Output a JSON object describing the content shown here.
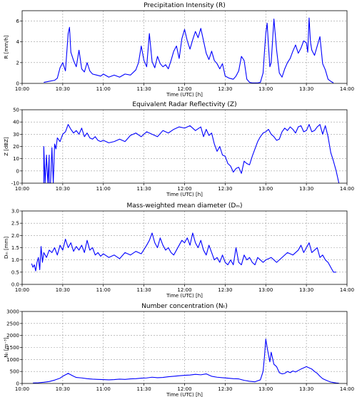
{
  "line_color": "#0000ff",
  "grid_color": "#9a9a9a",
  "chart_data": [
    {
      "type": "line",
      "title": "Precipitation Intensity (R)",
      "xlabel": "Time (UTC) [h]",
      "ylabel": "R [mm/h]",
      "xlim": [
        "10:00",
        "14:00"
      ],
      "ylim": [
        0,
        7
      ],
      "xticks": [
        "10:00",
        "10:30",
        "11:00",
        "11:30",
        "12:00",
        "12:30",
        "13:00",
        "13:30",
        "14:00"
      ],
      "yticks": [
        0,
        2,
        4,
        6
      ],
      "grid": true,
      "series": [
        {
          "x": [
            "10:16",
            "10:20",
            "10:24",
            "10:26",
            "10:28",
            "10:30",
            "10:32",
            "10:34",
            "10:35",
            "10:36",
            "10:38",
            "10:40",
            "10:42",
            "10:44",
            "10:46",
            "10:48",
            "10:50",
            "10:52",
            "10:55",
            "10:58",
            "11:00",
            "11:04",
            "11:08",
            "11:12",
            "11:16",
            "11:20",
            "11:24",
            "11:26",
            "11:28",
            "11:30",
            "11:32",
            "11:34",
            "11:36",
            "11:38",
            "11:40",
            "11:42",
            "11:44",
            "11:46",
            "11:48",
            "11:50",
            "11:52",
            "11:54",
            "11:56",
            "11:58",
            "12:00",
            "12:02",
            "12:04",
            "12:06",
            "12:08",
            "12:10",
            "12:12",
            "12:14",
            "12:16",
            "12:18",
            "12:20",
            "12:22",
            "12:24",
            "12:26",
            "12:28",
            "12:30",
            "12:33",
            "12:36",
            "12:38",
            "12:40",
            "12:42",
            "12:44",
            "12:46",
            "12:48",
            "12:50",
            "12:52",
            "12:54",
            "12:56",
            "12:58",
            "12:59",
            "13:00",
            "13:01",
            "13:02",
            "13:03",
            "13:04",
            "13:06",
            "13:08",
            "13:10",
            "13:12",
            "13:14",
            "13:16",
            "13:18",
            "13:20",
            "13:22",
            "13:24",
            "13:26",
            "13:28",
            "13:30",
            "13:31",
            "13:32",
            "13:33",
            "13:34",
            "13:36",
            "13:38",
            "13:40",
            "13:42",
            "13:44",
            "13:46",
            "13:48",
            "13:50"
          ],
          "y": [
            0.1,
            0.2,
            0.3,
            0.5,
            1.5,
            2.0,
            1.2,
            4.8,
            5.4,
            3.0,
            2.2,
            1.6,
            3.2,
            1.4,
            1.1,
            2.0,
            1.2,
            0.9,
            0.8,
            0.7,
            0.9,
            0.6,
            0.8,
            0.6,
            0.9,
            0.8,
            1.3,
            2.0,
            3.6,
            2.2,
            1.6,
            4.8,
            2.1,
            1.5,
            2.6,
            1.9,
            1.6,
            1.8,
            1.4,
            2.2,
            3.1,
            3.6,
            2.4,
            4.3,
            5.2,
            4.1,
            3.3,
            4.2,
            5.0,
            4.4,
            5.3,
            4.1,
            2.9,
            2.3,
            3.1,
            2.2,
            1.9,
            1.4,
            1.9,
            0.7,
            0.5,
            0.4,
            0.7,
            1.2,
            2.6,
            2.2,
            0.4,
            0.1,
            0.05,
            0.05,
            0.05,
            0.1,
            1.0,
            3.0,
            4.8,
            5.8,
            3.6,
            1.6,
            2.0,
            6.2,
            3.2,
            1.0,
            0.6,
            1.4,
            2.0,
            2.4,
            3.1,
            3.7,
            2.9,
            3.4,
            4.1,
            3.9,
            3.0,
            6.3,
            4.0,
            3.2,
            2.7,
            3.6,
            4.5,
            1.9,
            1.3,
            0.4,
            0.2,
            0.05
          ]
        }
      ]
    },
    {
      "type": "line",
      "title": "Equivalent Radar Reflectivity (Z)",
      "xlabel": "Time (UTC) [h]",
      "ylabel": "Z [dBZ]",
      "xlim": [
        "10:00",
        "14:00"
      ],
      "ylim": [
        -10,
        50
      ],
      "xticks": [
        "10:00",
        "10:30",
        "11:00",
        "11:30",
        "12:00",
        "12:30",
        "13:00",
        "13:30",
        "14:00"
      ],
      "yticks": [
        -10,
        0,
        10,
        20,
        30,
        40,
        50
      ],
      "grid": true,
      "series": [
        {
          "x": [
            "10:16",
            "10:16",
            "10:17",
            "10:18",
            "10:19",
            "10:20",
            "10:20",
            "10:21",
            "10:22",
            "10:23",
            "10:24",
            "10:25",
            "10:26",
            "10:28",
            "10:30",
            "10:32",
            "10:34",
            "10:36",
            "10:38",
            "10:40",
            "10:42",
            "10:44",
            "10:46",
            "10:48",
            "10:50",
            "10:52",
            "10:54",
            "10:56",
            "10:58",
            "11:00",
            "11:04",
            "11:08",
            "11:12",
            "11:16",
            "11:20",
            "11:24",
            "11:28",
            "11:32",
            "11:36",
            "11:40",
            "11:44",
            "11:48",
            "11:52",
            "11:56",
            "12:00",
            "12:04",
            "12:08",
            "12:12",
            "12:14",
            "12:16",
            "12:18",
            "12:20",
            "12:22",
            "12:24",
            "12:26",
            "12:28",
            "12:30",
            "12:32",
            "12:34",
            "12:36",
            "12:38",
            "12:40",
            "12:42",
            "12:44",
            "12:46",
            "12:48",
            "12:50",
            "12:52",
            "12:54",
            "12:56",
            "12:58",
            "13:00",
            "13:02",
            "13:04",
            "13:06",
            "13:08",
            "13:10",
            "13:12",
            "13:14",
            "13:16",
            "13:18",
            "13:20",
            "13:22",
            "13:24",
            "13:26",
            "13:28",
            "13:30",
            "13:32",
            "13:34",
            "13:36",
            "13:38",
            "13:40",
            "13:42",
            "13:44",
            "13:46",
            "13:48",
            "13:50",
            "13:52",
            "13:54"
          ],
          "y": [
            -10,
            20,
            -10,
            13,
            -10,
            13,
            -10,
            -10,
            19,
            -10,
            22,
            18,
            27,
            24,
            30,
            32,
            38,
            34,
            31,
            33,
            30,
            35,
            28,
            31,
            27,
            26,
            28,
            25,
            24,
            25,
            23,
            24,
            26,
            24,
            29,
            31,
            28,
            32,
            30,
            28,
            33,
            31,
            34,
            36,
            35,
            37,
            33,
            36,
            28,
            34,
            29,
            31,
            22,
            16,
            20,
            13,
            12,
            6,
            4,
            -1,
            2,
            3,
            -2,
            8,
            6,
            5,
            12,
            18,
            24,
            28,
            31,
            32,
            34,
            30,
            28,
            25,
            26,
            32,
            35,
            33,
            36,
            34,
            31,
            36,
            37,
            32,
            33,
            38,
            32,
            33,
            36,
            38,
            30,
            37,
            28,
            15,
            8,
            0,
            -10
          ]
        }
      ]
    },
    {
      "type": "line",
      "title": "Mass-weighted mean diameter (Dₘ)",
      "xlabel": "Time (UTC) [h]",
      "ylabel": "Dₘ [mm]",
      "xlim": [
        "10:00",
        "14:00"
      ],
      "ylim": [
        0.0,
        3.0
      ],
      "xticks": [
        "10:00",
        "10:30",
        "11:00",
        "11:30",
        "12:00",
        "12:30",
        "13:00",
        "13:30",
        "14:00"
      ],
      "yticks": [
        "0.0",
        "0.5",
        "1.0",
        "1.5",
        "2.0",
        "2.5",
        "3.0"
      ],
      "grid": true,
      "series": [
        {
          "x": [
            "10:07",
            "10:08",
            "10:09",
            "10:10",
            "10:11",
            "10:12",
            "10:13",
            "10:14",
            "10:15",
            "10:16",
            "10:18",
            "10:20",
            "10:22",
            "10:24",
            "10:26",
            "10:28",
            "10:30",
            "10:32",
            "10:34",
            "10:36",
            "10:38",
            "10:40",
            "10:42",
            "10:44",
            "10:46",
            "10:48",
            "10:50",
            "10:52",
            "10:54",
            "10:56",
            "10:58",
            "11:00",
            "11:04",
            "11:08",
            "11:12",
            "11:16",
            "11:20",
            "11:24",
            "11:28",
            "11:32",
            "11:34",
            "11:36",
            "11:38",
            "11:40",
            "11:42",
            "11:44",
            "11:46",
            "11:48",
            "11:50",
            "11:52",
            "11:54",
            "11:56",
            "11:58",
            "12:00",
            "12:02",
            "12:04",
            "12:06",
            "12:08",
            "12:10",
            "12:12",
            "12:14",
            "12:16",
            "12:18",
            "12:20",
            "12:22",
            "12:24",
            "12:26",
            "12:28",
            "12:30",
            "12:32",
            "12:34",
            "12:36",
            "12:38",
            "12:40",
            "12:42",
            "12:44",
            "12:46",
            "12:48",
            "12:50",
            "12:52",
            "12:54",
            "12:56",
            "12:58",
            "13:00",
            "13:04",
            "13:08",
            "13:12",
            "13:16",
            "13:20",
            "13:24",
            "13:26",
            "13:28",
            "13:30",
            "13:32",
            "13:34",
            "13:36",
            "13:38",
            "13:40",
            "13:42",
            "13:44",
            "13:46",
            "13:48",
            "13:50",
            "13:52"
          ],
          "y": [
            0.85,
            0.7,
            0.8,
            0.55,
            0.9,
            1.1,
            0.6,
            1.55,
            0.9,
            1.3,
            1.1,
            1.4,
            1.3,
            1.5,
            1.2,
            1.6,
            1.4,
            1.85,
            1.5,
            1.7,
            1.35,
            1.55,
            1.4,
            1.6,
            1.3,
            1.8,
            1.4,
            1.5,
            1.2,
            1.3,
            1.15,
            1.25,
            1.1,
            1.2,
            1.05,
            1.3,
            1.2,
            1.35,
            1.25,
            1.6,
            1.8,
            2.1,
            1.7,
            1.5,
            1.9,
            1.6,
            1.4,
            1.5,
            1.3,
            1.2,
            1.4,
            1.6,
            1.8,
            1.7,
            1.9,
            1.6,
            2.1,
            1.7,
            1.5,
            1.8,
            1.4,
            1.2,
            1.6,
            1.3,
            1.0,
            1.1,
            0.9,
            1.2,
            0.9,
            0.8,
            1.0,
            0.8,
            1.5,
            0.9,
            0.8,
            1.2,
            1.0,
            1.1,
            0.9,
            0.8,
            1.1,
            1.0,
            0.9,
            1.0,
            1.1,
            0.9,
            1.1,
            1.3,
            1.2,
            1.4,
            1.6,
            1.3,
            1.5,
            1.7,
            1.3,
            1.4,
            1.5,
            1.1,
            1.2,
            1.0,
            0.9,
            0.7,
            0.5,
            0.5
          ]
        }
      ]
    },
    {
      "type": "line",
      "title": "Number concentration (Nₜ)",
      "xlabel": "Time (UTC) [h]",
      "ylabel": "Nₜ [m⁻³]",
      "xlim": [
        "10:00",
        "14:00"
      ],
      "ylim": [
        0,
        3000
      ],
      "xticks": [
        "10:00",
        "10:30",
        "11:00",
        "11:30",
        "12:00",
        "12:30",
        "13:00",
        "13:30",
        "14:00"
      ],
      "yticks": [
        0,
        500,
        1000,
        1500,
        2000,
        2500,
        3000
      ],
      "grid": true,
      "series": [
        {
          "x": [
            "10:08",
            "10:12",
            "10:16",
            "10:20",
            "10:24",
            "10:28",
            "10:30",
            "10:32",
            "10:34",
            "10:36",
            "10:38",
            "10:40",
            "10:44",
            "10:48",
            "10:52",
            "10:56",
            "11:00",
            "11:04",
            "11:08",
            "11:12",
            "11:16",
            "11:20",
            "11:24",
            "11:28",
            "11:32",
            "11:36",
            "11:40",
            "11:44",
            "11:48",
            "11:52",
            "11:56",
            "12:00",
            "12:04",
            "12:08",
            "12:12",
            "12:16",
            "12:18",
            "12:20",
            "12:24",
            "12:28",
            "12:32",
            "12:36",
            "12:40",
            "12:44",
            "12:48",
            "12:52",
            "12:56",
            "12:58",
            "12:59",
            "13:00",
            "13:01",
            "13:02",
            "13:03",
            "13:04",
            "13:06",
            "13:08",
            "13:10",
            "13:12",
            "13:14",
            "13:16",
            "13:18",
            "13:20",
            "13:22",
            "13:24",
            "13:26",
            "13:28",
            "13:30",
            "13:32",
            "13:34",
            "13:36",
            "13:38",
            "13:40",
            "13:42",
            "13:44",
            "13:46",
            "13:48",
            "13:50",
            "13:52",
            "13:54"
          ],
          "y": [
            20,
            30,
            50,
            80,
            140,
            220,
            300,
            360,
            420,
            360,
            300,
            250,
            230,
            200,
            180,
            170,
            160,
            150,
            160,
            180,
            170,
            190,
            200,
            220,
            230,
            260,
            240,
            250,
            280,
            300,
            320,
            340,
            350,
            380,
            360,
            400,
            350,
            300,
            260,
            240,
            220,
            200,
            190,
            130,
            90,
            70,
            150,
            500,
            1100,
            1850,
            1500,
            1200,
            900,
            1300,
            800,
            700,
            450,
            400,
            420,
            500,
            450,
            520,
            480,
            540,
            600,
            650,
            700,
            650,
            600,
            500,
            420,
            300,
            200,
            150,
            100,
            60,
            40,
            20,
            10
          ]
        }
      ]
    }
  ]
}
